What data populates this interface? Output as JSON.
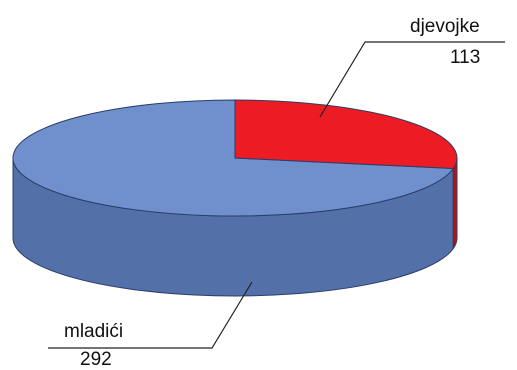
{
  "chart_data": {
    "type": "pie",
    "style": "3d",
    "slices": [
      {
        "label": "djevojke",
        "value": 113,
        "color": "#ed1c24"
      },
      {
        "label": "mladići",
        "value": 292,
        "color": "#6f8fcd"
      }
    ],
    "side_colors": {
      "mladići": "#5470a8",
      "djevojke": "#b01319"
    }
  }
}
